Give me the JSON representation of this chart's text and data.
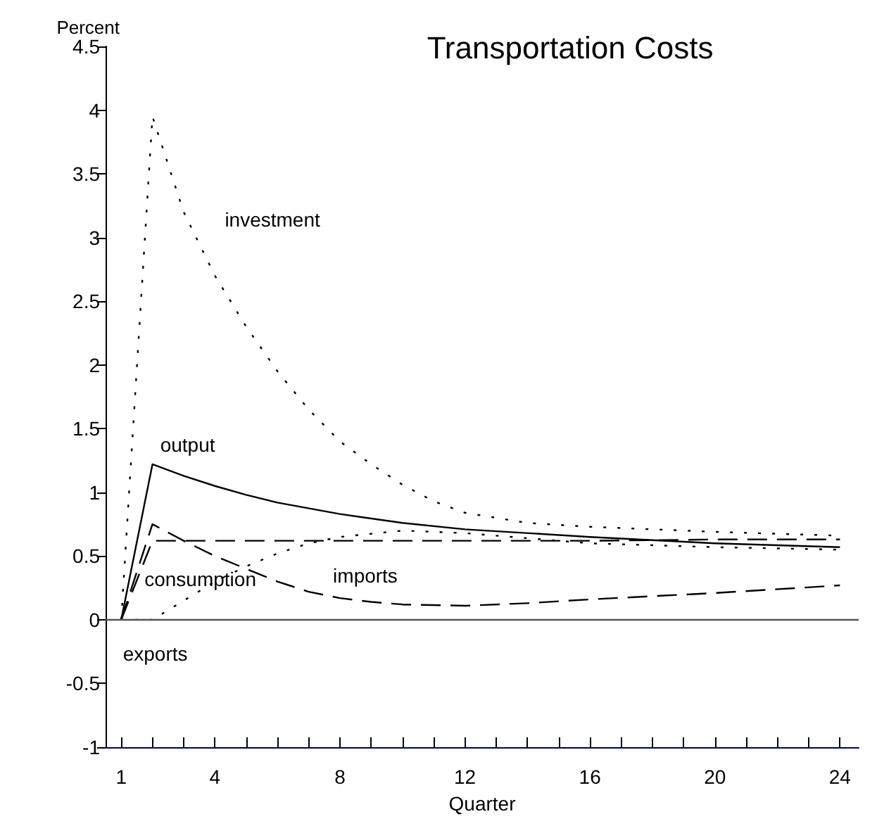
{
  "chart_data": {
    "type": "line",
    "title": "Transportation Costs",
    "xlabel": "Quarter",
    "ylabel": "Percent",
    "xlim": [
      0.5,
      24.6
    ],
    "xticks": [
      1,
      {
        "value": 2,
        "label": null
      },
      {
        "value": 3,
        "label": null
      },
      4,
      {
        "value": 5,
        "label": null
      },
      {
        "value": 6,
        "label": null
      },
      {
        "value": 7,
        "label": null
      },
      8,
      {
        "value": 9,
        "label": null
      },
      {
        "value": 10,
        "label": null
      },
      {
        "value": 11,
        "label": null
      },
      12,
      {
        "value": 13,
        "label": null
      },
      {
        "value": 14,
        "label": null
      },
      {
        "value": 15,
        "label": null
      },
      16,
      {
        "value": 17,
        "label": null
      },
      {
        "value": 18,
        "label": null
      },
      {
        "value": 19,
        "label": null
      },
      20,
      {
        "value": 21,
        "label": null
      },
      {
        "value": 22,
        "label": null
      },
      {
        "value": 23,
        "label": null
      },
      24
    ],
    "ylim": [
      -1,
      4.5
    ],
    "yticks": [
      -1,
      -0.5,
      0,
      0.5,
      1,
      1.5,
      2,
      2.5,
      3,
      3.5,
      4,
      4.5
    ],
    "grid": false,
    "legend": false,
    "marker": "none",
    "ref_lines": [
      {
        "axis": "y",
        "value": 0,
        "color": "#555555",
        "line_style": "solid"
      }
    ],
    "series": [
      {
        "name": "investment",
        "color": "#000000",
        "line_style": "dotted",
        "x": [
          1,
          2,
          3,
          4,
          5,
          6,
          7,
          8,
          9,
          10,
          11,
          12,
          14,
          16,
          20,
          24
        ],
        "values": [
          0,
          3.95,
          3.2,
          2.7,
          2.3,
          1.95,
          1.65,
          1.4,
          1.22,
          1.06,
          0.93,
          0.84,
          0.76,
          0.73,
          0.69,
          0.66
        ]
      },
      {
        "name": "output",
        "color": "#000000",
        "line_style": "solid",
        "x": [
          1,
          2,
          3,
          4,
          5,
          6,
          8,
          10,
          12,
          16,
          20,
          24
        ],
        "values": [
          0,
          1.22,
          1.13,
          1.05,
          0.98,
          0.92,
          0.83,
          0.76,
          0.71,
          0.65,
          0.6,
          0.57
        ]
      },
      {
        "name": "consumption",
        "color": "#000000",
        "line_style": "dashed",
        "x": [
          1,
          2,
          4,
          8,
          12,
          16,
          20,
          24
        ],
        "values": [
          0,
          0.62,
          0.62,
          0.62,
          0.62,
          0.62,
          0.63,
          0.63
        ]
      },
      {
        "name": "imports",
        "color": "#000000",
        "line_style": "dashed",
        "x": [
          1,
          2,
          3,
          4,
          5,
          6,
          7,
          8,
          9,
          10,
          12,
          14,
          16,
          20,
          24
        ],
        "values": [
          0,
          0.75,
          0.62,
          0.5,
          0.4,
          0.3,
          0.22,
          0.17,
          0.14,
          0.12,
          0.11,
          0.13,
          0.16,
          0.21,
          0.27
        ]
      },
      {
        "name": "exports",
        "color": "#000000",
        "line_style": "dotted",
        "x": [
          1,
          2,
          3,
          4,
          5,
          6,
          7,
          8,
          10,
          12,
          14,
          16,
          20,
          24
        ],
        "values": [
          0,
          0,
          0.15,
          0.3,
          0.42,
          0.52,
          0.6,
          0.65,
          0.7,
          0.68,
          0.64,
          0.6,
          0.57,
          0.55
        ]
      }
    ]
  }
}
